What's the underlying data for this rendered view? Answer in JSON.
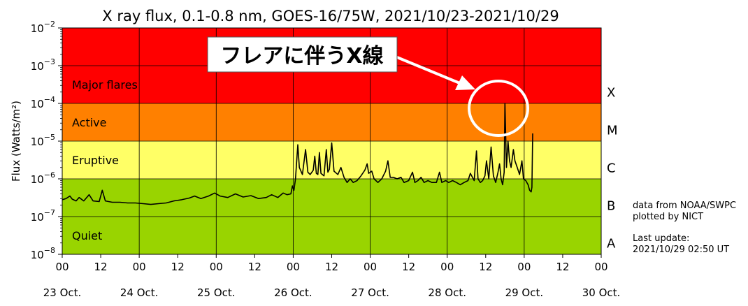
{
  "chart_data": {
    "type": "line",
    "title": "X ray flux, 0.1-0.8 nm, GOES-16/75W, 2021/10/23-2021/10/29",
    "ylabel": "Flux (Watts/m²)",
    "y_scale": "log",
    "ylim": [
      1e-08,
      0.01
    ],
    "y_ticks": [
      {
        "mant": "10",
        "exp": "−8"
      },
      {
        "mant": "10",
        "exp": "−7"
      },
      {
        "mant": "10",
        "exp": "−6"
      },
      {
        "mant": "10",
        "exp": "−5"
      },
      {
        "mant": "10",
        "exp": "−4"
      },
      {
        "mant": "10",
        "exp": "−3"
      },
      {
        "mant": "10",
        "exp": "−2"
      }
    ],
    "xlim_days": [
      "23 Oct.",
      "30 Oct."
    ],
    "x_hour_ticks": [
      "00",
      "12",
      "00",
      "12",
      "00",
      "12",
      "00",
      "12",
      "00",
      "12",
      "00",
      "12",
      "00",
      "12",
      "00"
    ],
    "x_day_labels": [
      "23 Oct.",
      "24 Oct.",
      "25 Oct.",
      "26 Oct.",
      "27 Oct.",
      "28 Oct.",
      "29 Oct.",
      "30 Oct."
    ],
    "grid": true,
    "bands": [
      {
        "name": "Quiet",
        "letter": "B",
        "range": [
          1e-08,
          1e-06
        ],
        "color": "#99d400"
      },
      {
        "name": "Eruptive",
        "letter": "C",
        "range": [
          1e-06,
          1e-05
        ],
        "color": "#ffff66"
      },
      {
        "name": "Active",
        "letter": "M",
        "range": [
          1e-05,
          0.0001
        ],
        "color": "#ff8000"
      },
      {
        "name": "Major flares",
        "letter": "X",
        "range": [
          0.0001,
          0.01
        ],
        "color": "#ff0000"
      }
    ],
    "class_letters": [
      {
        "letter": "X",
        "y": 0.0002
      },
      {
        "letter": "M",
        "y": 2e-05
      },
      {
        "letter": "C",
        "y": 2e-06
      },
      {
        "letter": "B",
        "y": 2e-07
      },
      {
        "letter": "A",
        "y": 2e-08
      }
    ],
    "series": [
      {
        "color": "#000000",
        "points": [
          [
            0.0,
            2.8e-07
          ],
          [
            0.05,
            3e-07
          ],
          [
            0.1,
            3.5e-07
          ],
          [
            0.13,
            2.9e-07
          ],
          [
            0.18,
            2.6e-07
          ],
          [
            0.22,
            3.2e-07
          ],
          [
            0.28,
            2.6e-07
          ],
          [
            0.35,
            3.8e-07
          ],
          [
            0.4,
            2.6e-07
          ],
          [
            0.48,
            2.5e-07
          ],
          [
            0.52,
            5e-07
          ],
          [
            0.56,
            2.6e-07
          ],
          [
            0.65,
            2.4e-07
          ],
          [
            0.75,
            2.4e-07
          ],
          [
            0.85,
            2.3e-07
          ],
          [
            0.95,
            2.3e-07
          ],
          [
            1.05,
            2.2e-07
          ],
          [
            1.15,
            2.1e-07
          ],
          [
            1.25,
            2.2e-07
          ],
          [
            1.35,
            2.3e-07
          ],
          [
            1.45,
            2.6e-07
          ],
          [
            1.55,
            2.8e-07
          ],
          [
            1.65,
            3.1e-07
          ],
          [
            1.72,
            3.5e-07
          ],
          [
            1.8,
            3e-07
          ],
          [
            1.9,
            3.5e-07
          ],
          [
            1.98,
            4.2e-07
          ],
          [
            2.05,
            3.5e-07
          ],
          [
            2.15,
            3.2e-07
          ],
          [
            2.25,
            4e-07
          ],
          [
            2.35,
            3.3e-07
          ],
          [
            2.45,
            3.6e-07
          ],
          [
            2.55,
            3e-07
          ],
          [
            2.65,
            3.2e-07
          ],
          [
            2.72,
            3.8e-07
          ],
          [
            2.8,
            3.2e-07
          ],
          [
            2.87,
            4.2e-07
          ],
          [
            2.92,
            3.8e-07
          ],
          [
            2.97,
            4e-07
          ],
          [
            2.99,
            6.5e-07
          ],
          [
            3.01,
            5e-07
          ],
          [
            3.03,
            1e-06
          ],
          [
            3.06,
            8e-06
          ],
          [
            3.08,
            2e-06
          ],
          [
            3.12,
            1.3e-06
          ],
          [
            3.16,
            6e-06
          ],
          [
            3.19,
            1.5e-06
          ],
          [
            3.22,
            1.3e-06
          ],
          [
            3.26,
            1.7e-06
          ],
          [
            3.28,
            4e-06
          ],
          [
            3.3,
            1.4e-06
          ],
          [
            3.32,
            1.3e-06
          ],
          [
            3.34,
            5e-06
          ],
          [
            3.36,
            1.4e-06
          ],
          [
            3.4,
            1.2e-06
          ],
          [
            3.43,
            6e-06
          ],
          [
            3.45,
            1.5e-06
          ],
          [
            3.47,
            1.8e-06
          ],
          [
            3.5,
            9e-06
          ],
          [
            3.53,
            1.6e-06
          ],
          [
            3.58,
            1.3e-06
          ],
          [
            3.62,
            2e-06
          ],
          [
            3.66,
            1.1e-06
          ],
          [
            3.7,
            8e-07
          ],
          [
            3.74,
            1e-06
          ],
          [
            3.78,
            8e-07
          ],
          [
            3.83,
            9e-07
          ],
          [
            3.88,
            1.2e-06
          ],
          [
            3.93,
            1.7e-06
          ],
          [
            3.96,
            2.5e-06
          ],
          [
            3.98,
            1.4e-06
          ],
          [
            4.02,
            1.6e-06
          ],
          [
            4.05,
            1e-06
          ],
          [
            4.1,
            8e-07
          ],
          [
            4.15,
            1e-06
          ],
          [
            4.2,
            1.6e-06
          ],
          [
            4.23,
            3e-06
          ],
          [
            4.26,
            1.1e-06
          ],
          [
            4.3,
            1.1e-06
          ],
          [
            4.35,
            1e-06
          ],
          [
            4.4,
            1.1e-06
          ],
          [
            4.44,
            8e-07
          ],
          [
            4.5,
            9e-07
          ],
          [
            4.55,
            1.5e-06
          ],
          [
            4.58,
            8e-07
          ],
          [
            4.62,
            9e-07
          ],
          [
            4.66,
            1.1e-06
          ],
          [
            4.7,
            8e-07
          ],
          [
            4.75,
            9e-07
          ],
          [
            4.8,
            8e-07
          ],
          [
            4.86,
            8e-07
          ],
          [
            4.9,
            1.5e-06
          ],
          [
            4.93,
            8e-07
          ],
          [
            4.98,
            9e-07
          ],
          [
            5.02,
            8e-07
          ],
          [
            5.07,
            9e-07
          ],
          [
            5.12,
            8e-07
          ],
          [
            5.17,
            7e-07
          ],
          [
            5.22,
            8e-07
          ],
          [
            5.27,
            9e-07
          ],
          [
            5.3,
            1.4e-06
          ],
          [
            5.35,
            9e-07
          ],
          [
            5.38,
            5.5e-06
          ],
          [
            5.4,
            1e-06
          ],
          [
            5.43,
            8e-07
          ],
          [
            5.46,
            9e-07
          ],
          [
            5.49,
            1.2e-06
          ],
          [
            5.51,
            3e-06
          ],
          [
            5.54,
            1e-06
          ],
          [
            5.57,
            7e-06
          ],
          [
            5.6,
            1.2e-06
          ],
          [
            5.63,
            8e-07
          ],
          [
            5.66,
            1.5e-06
          ],
          [
            5.68,
            2.5e-06
          ],
          [
            5.7,
            1e-06
          ],
          [
            5.72,
            7e-07
          ],
          [
            5.74,
            1.5e-06
          ],
          [
            5.75,
            0.0001
          ],
          [
            5.77,
            2e-06
          ],
          [
            5.79,
            1e-05
          ],
          [
            5.81,
            3e-06
          ],
          [
            5.83,
            2e-06
          ],
          [
            5.86,
            6e-06
          ],
          [
            5.88,
            3e-06
          ],
          [
            5.91,
            2e-06
          ],
          [
            5.94,
            1.3e-06
          ],
          [
            5.97,
            3e-06
          ],
          [
            5.99,
            1e-06
          ],
          [
            6.02,
            9e-07
          ],
          [
            6.05,
            7e-07
          ],
          [
            6.07,
            5e-07
          ],
          [
            6.09,
            4.5e-07
          ],
          [
            6.1,
            6e-07
          ],
          [
            6.11,
            1.6e-05
          ]
        ]
      }
    ]
  },
  "side_notes": {
    "source": "data from NOAA/SWPC",
    "plotter": "plotted by NICT",
    "update_label": "Last update:",
    "update_time": "2021/10/29 02:50 UT"
  },
  "callout": {
    "text": "フレアに伴うX線",
    "target": [
      5.75,
      3e-05
    ]
  }
}
